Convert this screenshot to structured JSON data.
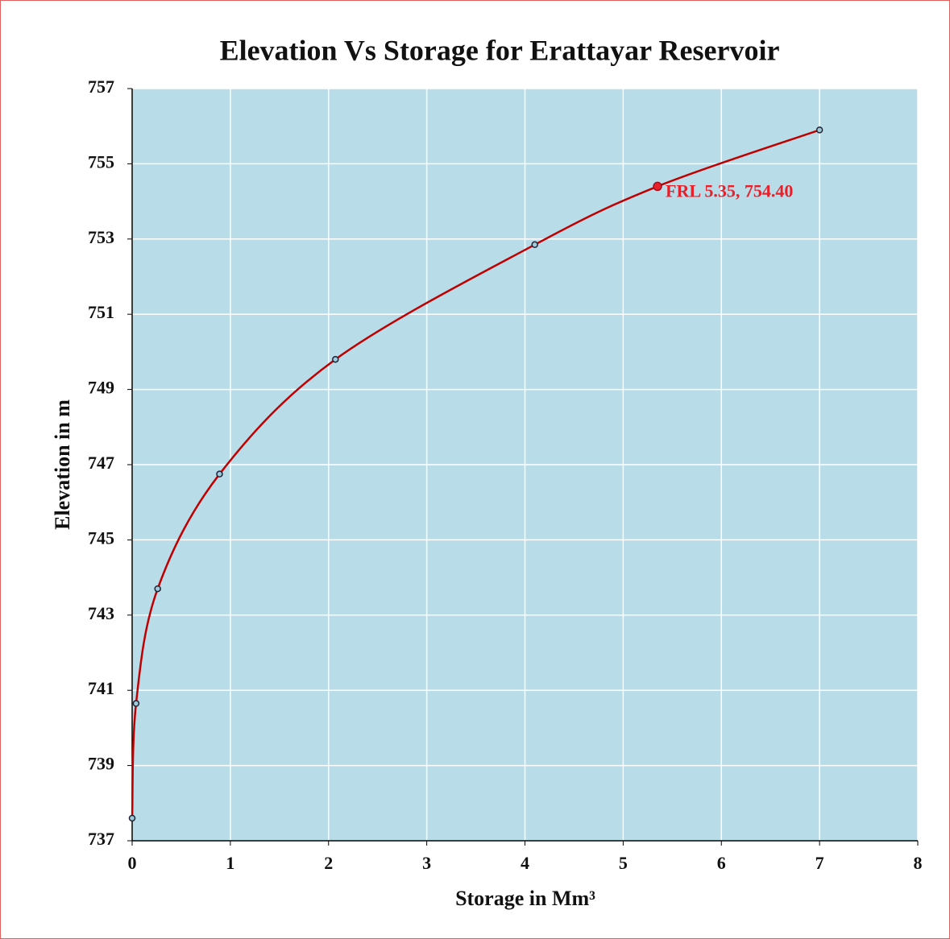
{
  "chart_data": {
    "type": "line",
    "title": "Elevation Vs Storage for Erattayar Reservoir",
    "x_label": "Storage in Mm³",
    "y_label": "Elevation in m",
    "series": [
      {
        "name": "Elevation",
        "color": "#c00000",
        "marker_color": "#9ccbdb",
        "x": [
          0,
          0.04,
          0.26,
          0.89,
          2.07,
          4.1,
          5.35,
          7.0
        ],
        "values": [
          737.6,
          740.65,
          743.7,
          746.75,
          749.8,
          752.85,
          754.4,
          755.9
        ]
      }
    ],
    "annotations": [
      {
        "text": "FRL 5.35, 754.40",
        "x": 5.35,
        "y": 754.4,
        "color": "#e8202a"
      }
    ],
    "xlim": [
      0,
      8
    ],
    "xticks": [
      0,
      1,
      2,
      3,
      4,
      5,
      6,
      7,
      8
    ],
    "ylim": [
      737,
      757
    ],
    "yticks": [
      737,
      739,
      741,
      743,
      745,
      747,
      749,
      751,
      753,
      755,
      757
    ],
    "grid": true,
    "plot_background": "#b8dce8"
  }
}
